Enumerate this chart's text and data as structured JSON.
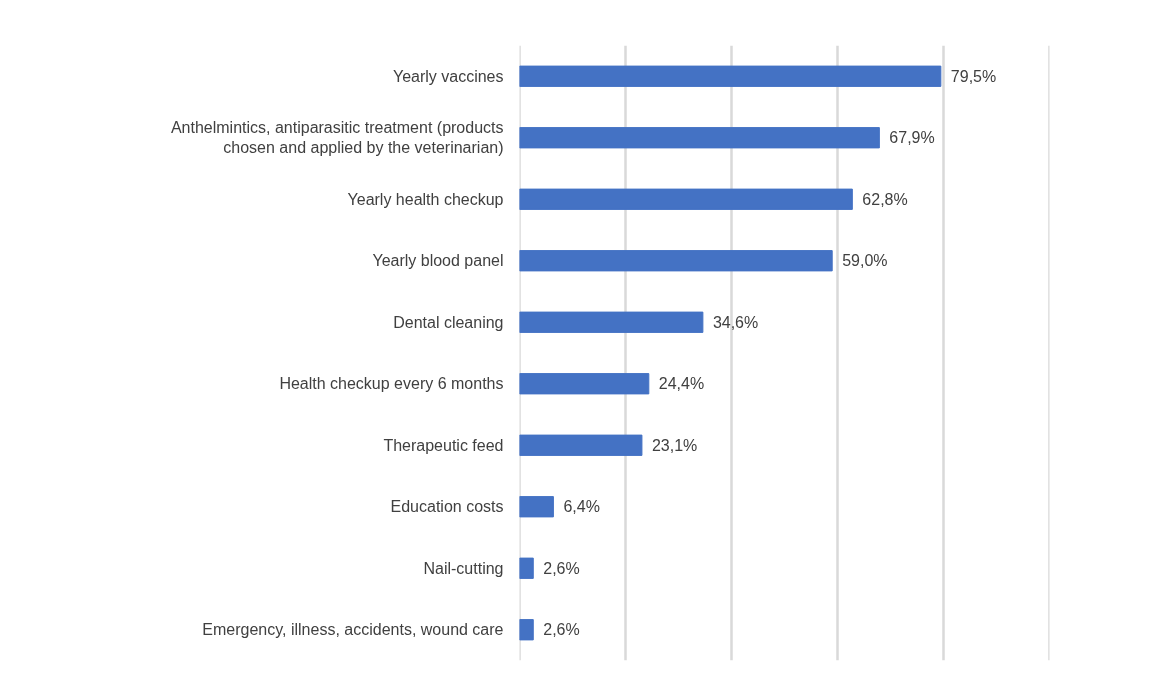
{
  "chart_data": {
    "type": "bar",
    "orientation": "horizontal",
    "categories": [
      "Yearly vaccines",
      "Anthelmintics, antiparasitic treatment (products chosen and applied by the veterinarian)",
      "Yearly health checkup",
      "Yearly blood panel",
      "Dental cleaning",
      "Health checkup every 6 months",
      "Therapeutic feed",
      "Education costs",
      "Nail-cutting",
      "Emergency, illness, accidents, wound care"
    ],
    "values": [
      79.5,
      67.9,
      62.8,
      59.0,
      34.6,
      24.4,
      23.1,
      6.4,
      2.6,
      2.6
    ],
    "value_labels": [
      "79,5%",
      "67,9%",
      "62,8%",
      "59,0%",
      "34,6%",
      "24,4%",
      "23,1%",
      "6,4%",
      "2,6%",
      "2,6%"
    ],
    "color": "#4472c4",
    "xlim": [
      0,
      100
    ],
    "xticks": [
      {
        "value": 0,
        "label": null
      },
      {
        "value": 20,
        "label": null
      },
      {
        "value": 40,
        "label": null
      },
      {
        "value": 60,
        "label": null
      },
      {
        "value": 80,
        "label": null
      },
      {
        "value": 100,
        "label": null
      }
    ],
    "grid": "x",
    "tick_labels": "y"
  }
}
